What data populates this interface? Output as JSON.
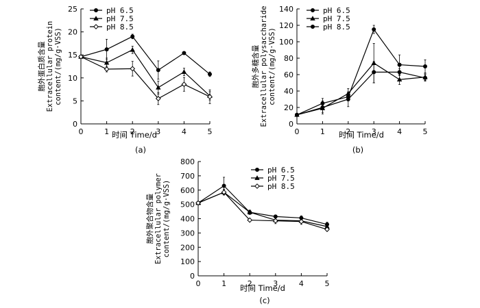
{
  "chart_data": [
    {
      "type": "line",
      "panel_label": "(a)",
      "xlabel": "时间 Time/d",
      "ylabel_lines": [
        "胞外蛋白质含量",
        "Extracellular protein",
        "content/(mg/g·VSS)"
      ],
      "xlim": [
        0,
        5
      ],
      "ylim": [
        0,
        25
      ],
      "x_ticks": [
        0,
        1,
        2,
        3,
        4,
        5
      ],
      "y_ticks": [
        0,
        5,
        10,
        15,
        20,
        25
      ],
      "legend_position": "top-left",
      "x": [
        0,
        1,
        2,
        3,
        4,
        5
      ],
      "series": [
        {
          "name": "pH 6.5",
          "marker": "filled-circle",
          "values": [
            14.6,
            16.2,
            19.0,
            11.7,
            15.4,
            10.8
          ],
          "errors": [
            0.3,
            2.2,
            0.5,
            2.0,
            0.3,
            0.5
          ]
        },
        {
          "name": "pH 7.5",
          "marker": "filled-triangle",
          "values": [
            14.6,
            13.3,
            16.1,
            7.9,
            11.3,
            6.1
          ],
          "errors": [
            0.3,
            1.0,
            0.8,
            1.4,
            0.8,
            0.9
          ]
        },
        {
          "name": "pH 8.5",
          "marker": "open-diamond",
          "values": [
            14.6,
            11.9,
            12.0,
            5.5,
            8.6,
            5.9
          ],
          "errors": [
            0.3,
            0.6,
            1.6,
            1.3,
            1.5,
            1.5
          ]
        }
      ]
    },
    {
      "type": "line",
      "panel_label": "(b)",
      "xlabel": "时间 Time/d",
      "ylabel_lines": [
        "胞外多糖含量",
        "Extracellular polysaccharide",
        "content/(mg/g·VSS)"
      ],
      "xlim": [
        0,
        5
      ],
      "ylim": [
        0,
        140
      ],
      "x_ticks": [
        0,
        1,
        2,
        3,
        4,
        5
      ],
      "y_ticks": [
        0,
        20,
        40,
        60,
        80,
        100,
        120,
        140
      ],
      "legend_position": "top-left",
      "x": [
        0,
        1,
        2,
        3,
        4,
        5
      ],
      "series": [
        {
          "name": "pH 6.5",
          "marker": "filled-circle",
          "values": [
            11,
            25,
            33,
            115,
            72,
            70
          ],
          "errors": [
            1,
            6,
            5,
            5,
            12,
            8
          ]
        },
        {
          "name": "pH 7.5",
          "marker": "filled-triangle",
          "values": [
            11,
            19,
            37,
            74,
            54,
            57
          ],
          "errors": [
            1,
            5,
            6,
            24,
            6,
            4
          ]
        },
        {
          "name": "pH 8.5",
          "marker": "filled-circle",
          "values": [
            11,
            20,
            30,
            63,
            63,
            56
          ],
          "errors": [
            1,
            8,
            9,
            13,
            4,
            4
          ]
        }
      ]
    },
    {
      "type": "line",
      "panel_label": "(c)",
      "xlabel": "时间 Time/d",
      "ylabel_lines": [
        "胞外聚合物含量",
        "Extracellular polymer",
        "content/(mg/g·VSS)"
      ],
      "xlim": [
        0,
        5
      ],
      "ylim": [
        0,
        800
      ],
      "x_ticks": [
        0,
        1,
        2,
        3,
        4,
        5
      ],
      "y_ticks": [
        0,
        100,
        200,
        300,
        400,
        500,
        600,
        700,
        800
      ],
      "legend_position": "top-right",
      "x": [
        0,
        1,
        2,
        3,
        4,
        5
      ],
      "series": [
        {
          "name": "pH 6.5",
          "marker": "filled-circle",
          "values": [
            510,
            630,
            445,
            415,
            405,
            360
          ],
          "errors": [
            5,
            60,
            15,
            10,
            15,
            15
          ]
        },
        {
          "name": "pH 7.5",
          "marker": "filled-triangle",
          "values": [
            510,
            585,
            445,
            390,
            385,
            345
          ],
          "errors": [
            5,
            20,
            15,
            15,
            15,
            10
          ]
        },
        {
          "name": "pH 8.5",
          "marker": "open-diamond",
          "values": [
            510,
            585,
            390,
            385,
            380,
            325
          ],
          "errors": [
            5,
            15,
            5,
            20,
            20,
            10
          ]
        }
      ]
    }
  ]
}
